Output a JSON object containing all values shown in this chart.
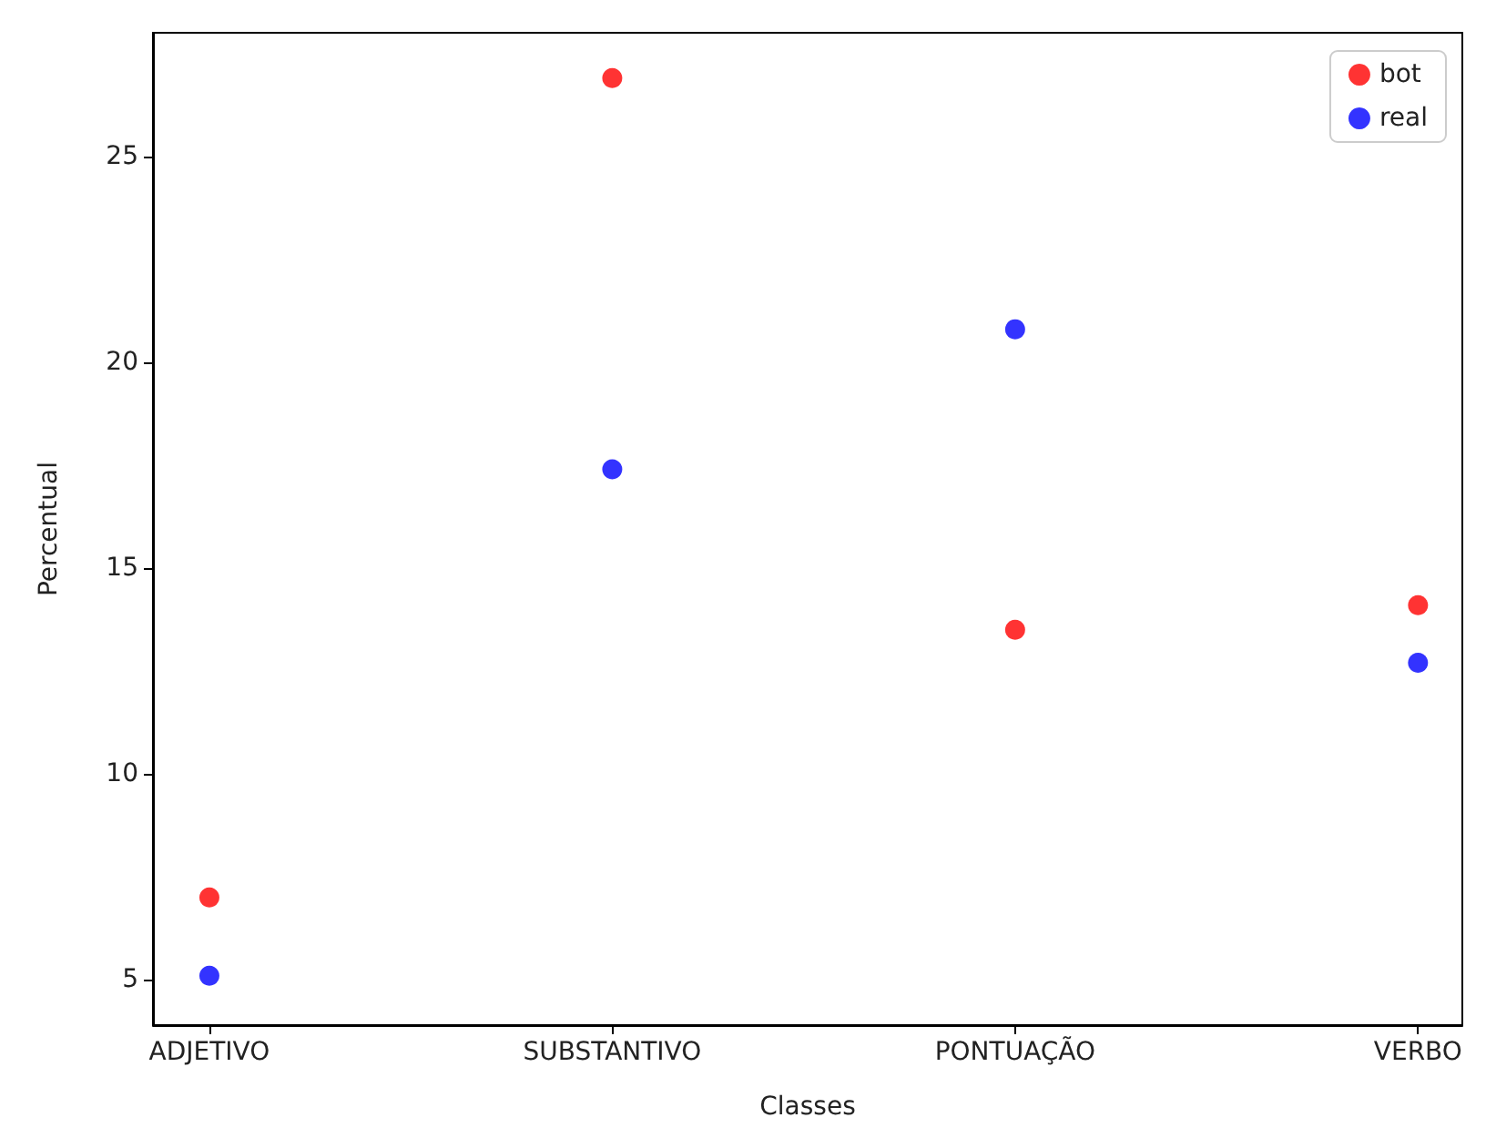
{
  "chart_data": {
    "type": "scatter",
    "xlabel": "Classes",
    "ylabel": "Percentual",
    "categories": [
      "ADJETIVO",
      "SUBSTANTIVO",
      "PONTUAÇÃO",
      "VERBO"
    ],
    "series": [
      {
        "name": "bot",
        "color": "#ff0000",
        "values": [
          7.0,
          26.9,
          13.5,
          14.1
        ]
      },
      {
        "name": "real",
        "color": "#0000ff",
        "values": [
          5.1,
          17.4,
          20.8,
          12.7
        ]
      }
    ],
    "ylim": [
      3.9,
      28.0
    ],
    "yticks": [
      5,
      10,
      15,
      20,
      25
    ],
    "legend": "top right",
    "marker": "circle",
    "grid": false
  }
}
